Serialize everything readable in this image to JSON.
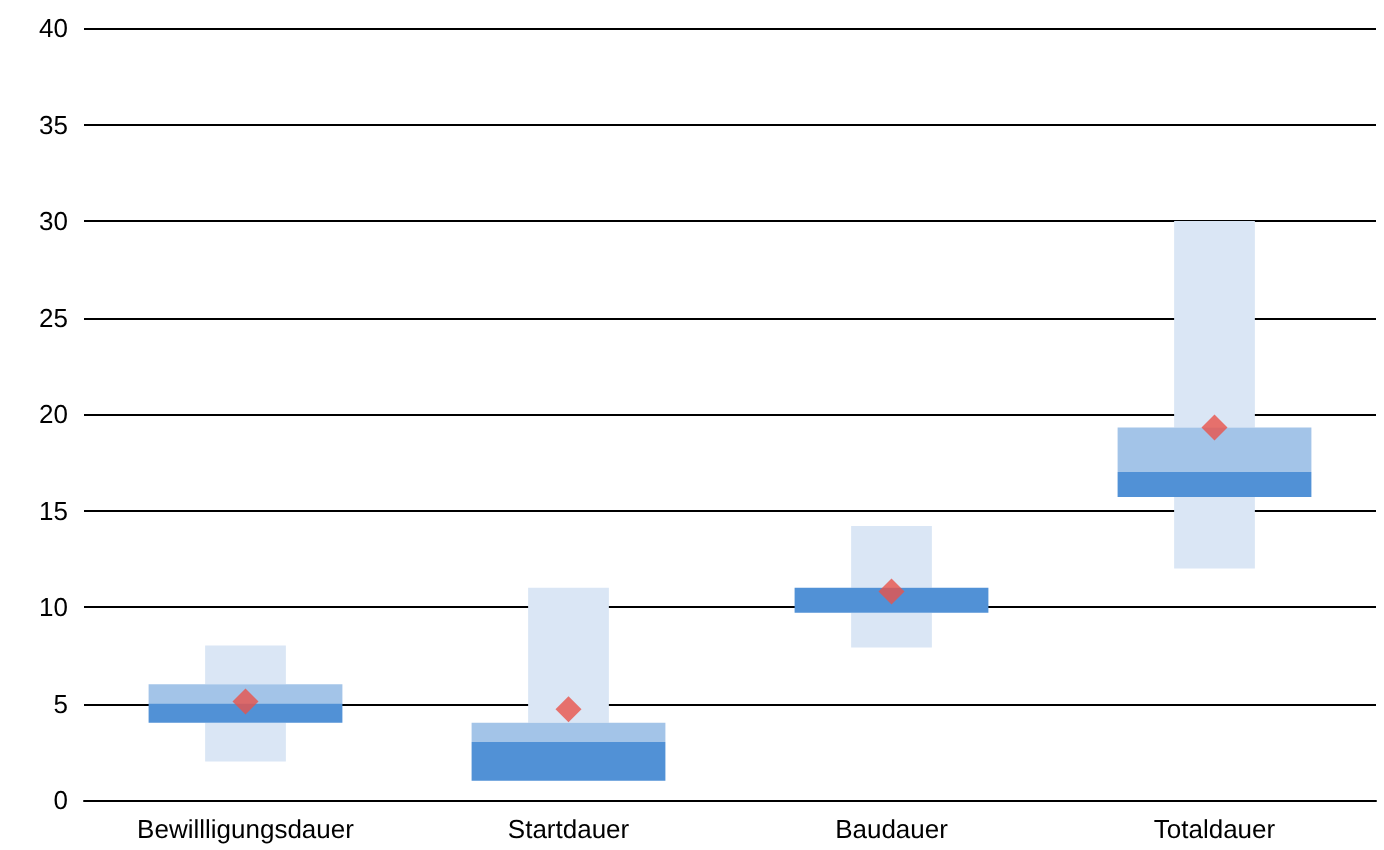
{
  "chart_data": {
    "type": "box",
    "categories": [
      "Bewillligungsdauer",
      "Startdauer",
      "Baudauer",
      "Totaldauer"
    ],
    "series": [
      {
        "color": "#5191d6",
        "boxes": [
          {
            "low": 2,
            "q1": 4,
            "median": 5,
            "q3": 6,
            "high": 8,
            "mean": 5.1
          },
          {
            "low": 1,
            "q1": 1,
            "median": 3,
            "q3": 4,
            "high": 11,
            "mean": 4.7
          },
          {
            "low": 7.9,
            "q1": 9.7,
            "median": 11,
            "q3": 11,
            "high": 14.2,
            "mean": 10.8
          },
          {
            "low": 12,
            "q1": 15.7,
            "median": 17,
            "q3": 19.3,
            "high": 30,
            "mean": 19.3
          }
        ]
      }
    ],
    "ylim": [
      0,
      40
    ],
    "yticks": [
      0,
      5,
      10,
      15,
      20,
      25,
      30,
      35,
      40
    ],
    "grid": "y"
  }
}
